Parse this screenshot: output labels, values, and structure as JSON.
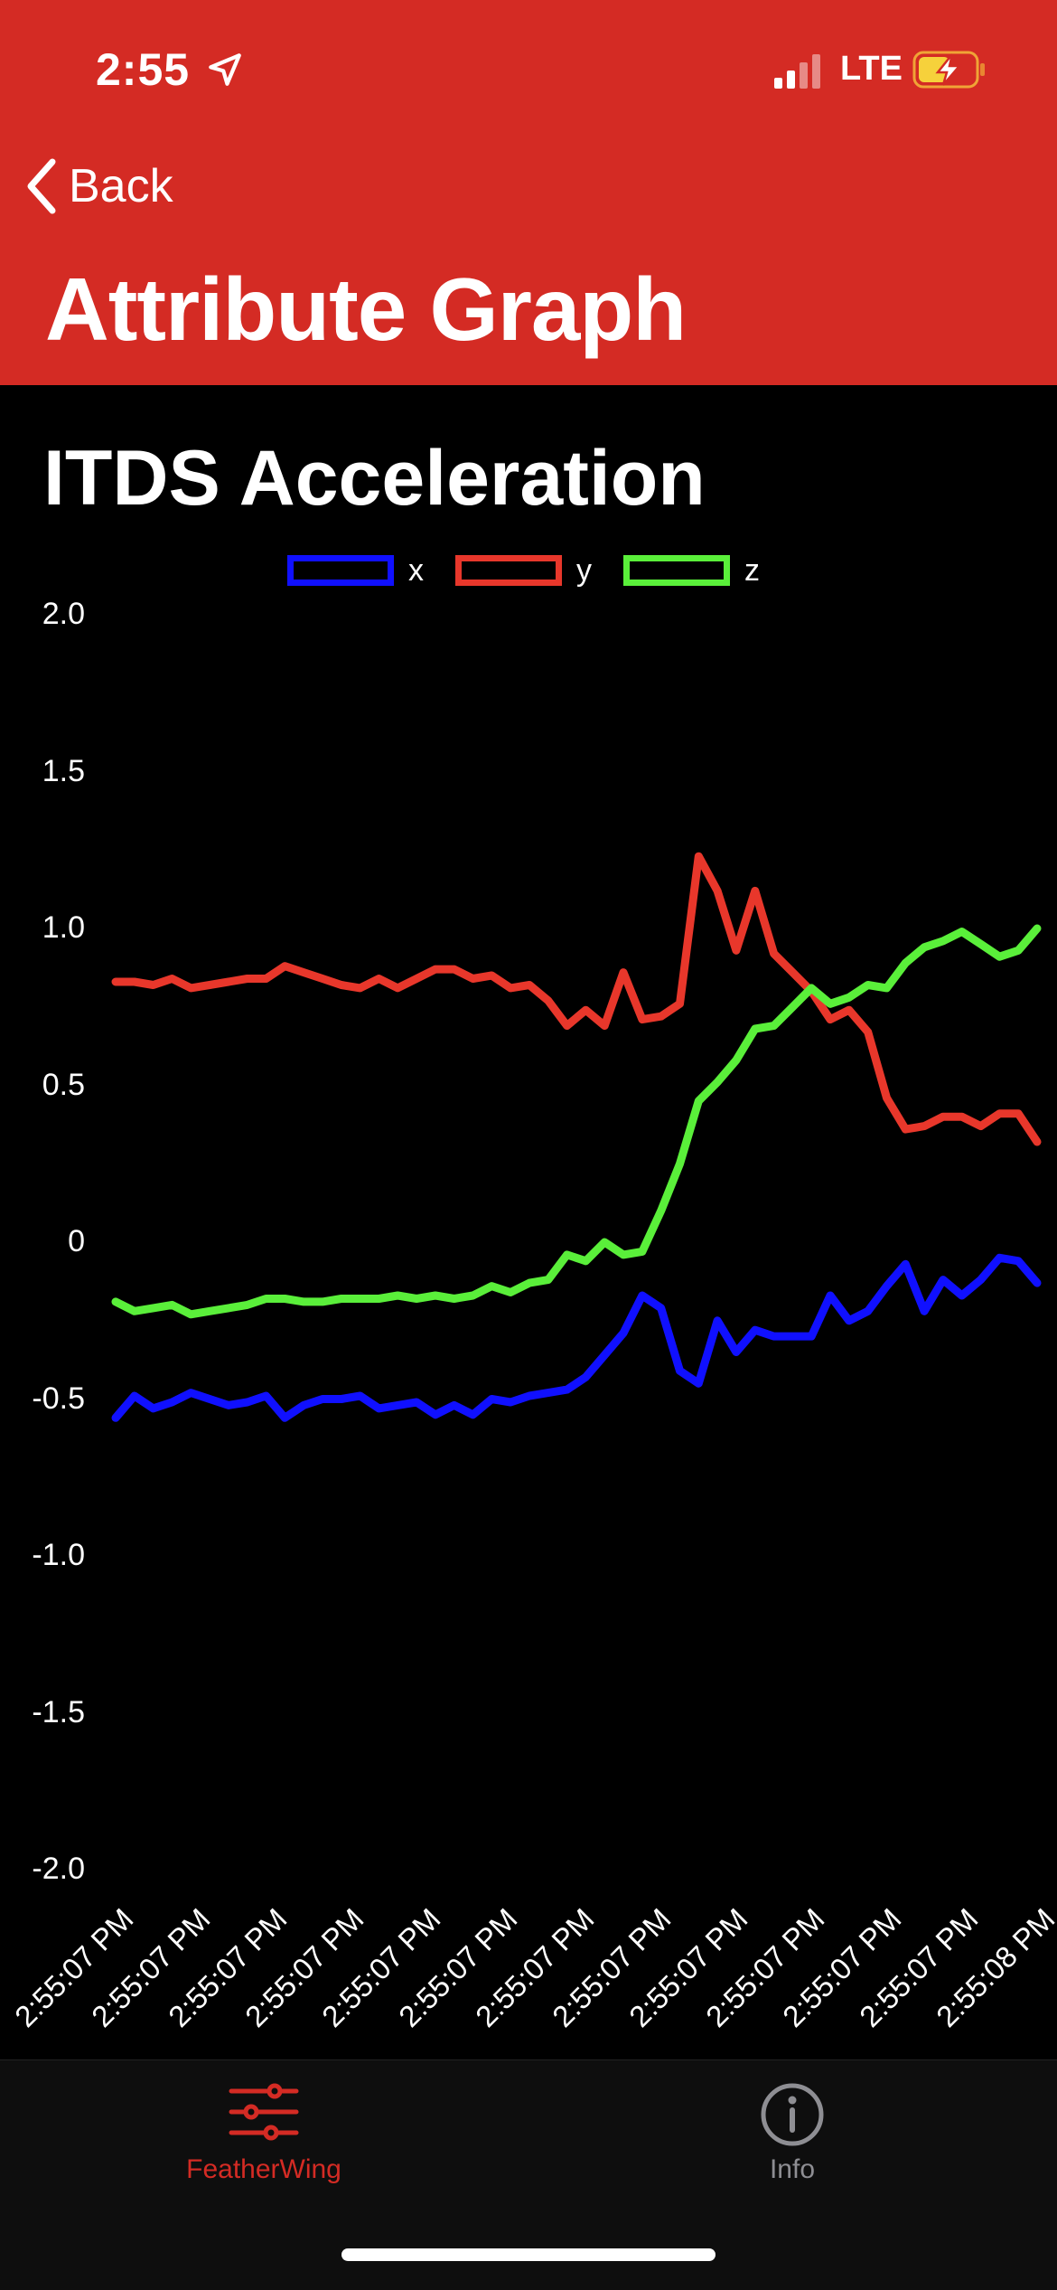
{
  "status_bar": {
    "time": "2:55",
    "network": "LTE"
  },
  "nav": {
    "back_label": "Back",
    "title": "Attribute Graph"
  },
  "colors": {
    "header": "#d42b24",
    "x_series": "#1010ff",
    "y_series": "#e8372b",
    "z_series": "#5aef3a",
    "tab_active": "#d42b24",
    "tab_inactive": "#8e8e93"
  },
  "chart_data": {
    "type": "line",
    "title": "ITDS Acceleration",
    "legend_position": "top-center",
    "ylim": [
      -2.0,
      2.0
    ],
    "y_ticks": [
      "2.0",
      "1.5",
      "1.0",
      "0.5",
      "0",
      "-0.5",
      "-1.0",
      "-1.5",
      "-2.0"
    ],
    "x_tick_labels": [
      "2:55:07 PM",
      "2:55:07 PM",
      "2:55:07 PM",
      "2:55:07 PM",
      "2:55:07 PM",
      "2:55:07 PM",
      "2:55:07 PM",
      "2:55:07 PM",
      "2:55:07 PM",
      "2:55:07 PM",
      "2:55:07 PM",
      "2:55:07 PM",
      "2:55:08 PM"
    ],
    "series": [
      {
        "name": "x",
        "color": "#1010ff",
        "values": [
          -0.56,
          -0.49,
          -0.53,
          -0.51,
          -0.48,
          -0.5,
          -0.52,
          -0.51,
          -0.49,
          -0.56,
          -0.52,
          -0.5,
          -0.5,
          -0.49,
          -0.53,
          -0.52,
          -0.51,
          -0.55,
          -0.52,
          -0.55,
          -0.5,
          -0.51,
          -0.49,
          -0.48,
          -0.47,
          -0.43,
          -0.36,
          -0.29,
          -0.17,
          -0.21,
          -0.41,
          -0.45,
          -0.25,
          -0.35,
          -0.28,
          -0.3,
          -0.3,
          -0.3,
          -0.17,
          -0.25,
          -0.22,
          -0.14,
          -0.07,
          -0.22,
          -0.12,
          -0.17,
          -0.12,
          -0.05,
          -0.06,
          -0.13
        ]
      },
      {
        "name": "y",
        "color": "#e8372b",
        "values": [
          0.83,
          0.83,
          0.82,
          0.84,
          0.81,
          0.82,
          0.83,
          0.84,
          0.84,
          0.88,
          0.86,
          0.84,
          0.82,
          0.81,
          0.84,
          0.81,
          0.84,
          0.87,
          0.87,
          0.84,
          0.85,
          0.81,
          0.82,
          0.77,
          0.69,
          0.74,
          0.69,
          0.86,
          0.71,
          0.72,
          0.76,
          1.23,
          1.12,
          0.93,
          1.12,
          0.92,
          0.86,
          0.8,
          0.71,
          0.74,
          0.67,
          0.46,
          0.36,
          0.37,
          0.4,
          0.4,
          0.37,
          0.41,
          0.41,
          0.32
        ]
      },
      {
        "name": "z",
        "color": "#5aef3a",
        "values": [
          -0.19,
          -0.22,
          -0.21,
          -0.2,
          -0.23,
          -0.22,
          -0.21,
          -0.2,
          -0.18,
          -0.18,
          -0.19,
          -0.19,
          -0.18,
          -0.18,
          -0.18,
          -0.17,
          -0.18,
          -0.17,
          -0.18,
          -0.17,
          -0.14,
          -0.16,
          -0.13,
          -0.12,
          -0.04,
          -0.06,
          0,
          -0.04,
          -0.03,
          0.1,
          0.25,
          0.45,
          0.51,
          0.58,
          0.68,
          0.69,
          0.75,
          0.81,
          0.76,
          0.78,
          0.82,
          0.81,
          0.89,
          0.94,
          0.96,
          0.99,
          0.95,
          0.91,
          0.93,
          1.0
        ]
      }
    ]
  },
  "tabbar": {
    "tabs": [
      {
        "label": "FeatherWing",
        "icon": "sliders-icon",
        "active": true
      },
      {
        "label": "Info",
        "icon": "info-circle-icon",
        "active": false
      }
    ]
  }
}
